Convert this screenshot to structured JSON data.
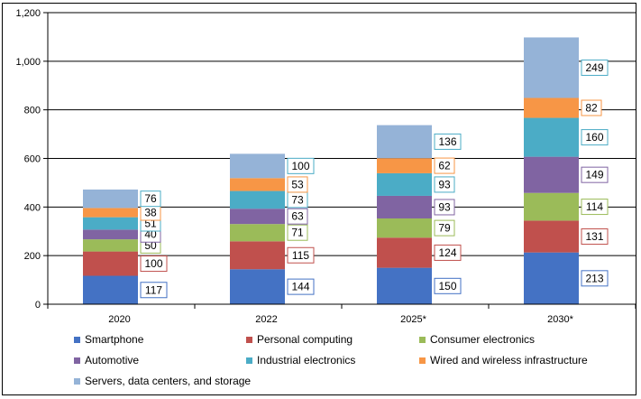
{
  "chart_data": {
    "type": "bar",
    "stacked": true,
    "categories": [
      "2020",
      "2022",
      "2025*",
      "2030*"
    ],
    "ylim": [
      0,
      1200
    ],
    "yticks": [
      "0",
      "200",
      "400",
      "600",
      "800",
      "1,000",
      "1,200"
    ],
    "ytick_values": [
      0,
      200,
      400,
      600,
      800,
      1000,
      1200
    ],
    "grid": true,
    "legend_position": "bottom",
    "series": [
      {
        "name": "Smartphone",
        "color": "#4472c4",
        "label_border": "#4472c4",
        "values": [
          117,
          144,
          150,
          213
        ]
      },
      {
        "name": "Personal computing",
        "color": "#c0504d",
        "label_border": "#c0504d",
        "values": [
          100,
          115,
          124,
          131
        ]
      },
      {
        "name": "Consumer electronics",
        "color": "#9bbb59",
        "label_border": "#9bbb59",
        "values": [
          50,
          71,
          79,
          114
        ]
      },
      {
        "name": "Automotive",
        "color": "#8064a2",
        "label_border": "#8064a2",
        "values": [
          40,
          63,
          93,
          149
        ]
      },
      {
        "name": "Industrial electronics",
        "color": "#4bacc6",
        "label_border": "#4bacc6",
        "values": [
          51,
          73,
          93,
          160
        ]
      },
      {
        "name": "Wired and wireless infrastructure",
        "color": "#f79646",
        "label_border": "#f79646",
        "values": [
          38,
          53,
          62,
          82
        ]
      },
      {
        "name": "Servers, data centers, and storage",
        "color": "#95b3d7",
        "label_border": "#4bacc6",
        "values": [
          76,
          100,
          136,
          249
        ]
      }
    ]
  }
}
